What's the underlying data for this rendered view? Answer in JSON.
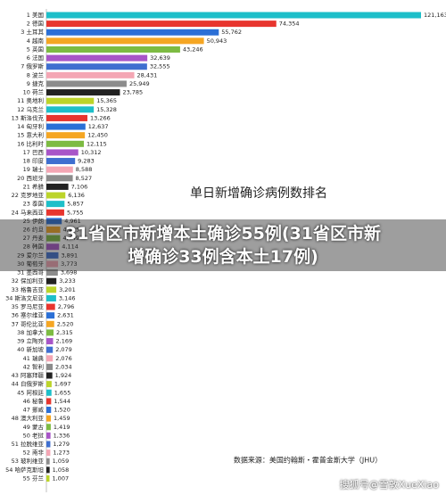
{
  "chart_data": {
    "type": "hbar",
    "title": "单日新增确诊病例数排名",
    "source": "数据来源：美国约翰斯・霍普金斯大学（JHU）",
    "categories": [
      "1 美国",
      "2 德国",
      "3 土耳其",
      "4 越南",
      "5 英国",
      "6 法国",
      "7 俄罗斯",
      "8 波兰",
      "9 捷克",
      "10 荷兰",
      "11 奥地利",
      "12 乌克兰",
      "13 斯洛伐克",
      "14 匈牙利",
      "15 意大利",
      "16 比利时",
      "17 巴西",
      "18 印度",
      "19 瑞士",
      "20 西班牙",
      "21 希腊",
      "22 克罗地亚",
      "23 泰国",
      "24 马来西亚",
      "25 伊朗",
      "26 约旦",
      "27 丹麦",
      "28 韩国",
      "29 爱尔兰",
      "30 葡萄牙",
      "31 墨西哥",
      "32 保加利亚",
      "33 格鲁吉亚",
      "34 斯洛文尼亚",
      "35 罗马尼亚",
      "36 塞尔维亚",
      "37 哥伦比亚",
      "38 加拿大",
      "39 立陶宛",
      "40 新加坡",
      "41 瑞典",
      "42 智利",
      "43 阿塞拜疆",
      "44 白俄罗斯",
      "45 阿根廷",
      "46 秘鲁",
      "47 挪威",
      "48 澳大利亚",
      "49 蒙古",
      "50 老挝",
      "51 拉脱维亚",
      "52 南非",
      "53 玻利维亚",
      "54 哈萨克斯坦",
      "55 芬兰"
    ],
    "values": [
      121163,
      74354,
      55762,
      50943,
      43246,
      32639,
      32555,
      28431,
      25949,
      23785,
      15365,
      15328,
      13266,
      12637,
      12450,
      12115,
      10312,
      9283,
      8588,
      8527,
      7106,
      6136,
      5857,
      5755,
      4961,
      4485,
      4449,
      4114,
      3891,
      3773,
      3698,
      3233,
      3201,
      3146,
      2796,
      2631,
      2520,
      2315,
      2169,
      2079,
      2076,
      2034,
      1924,
      1697,
      1655,
      1544,
      1520,
      1459,
      1419,
      1336,
      1279,
      1273,
      1059,
      1058,
      1007
    ],
    "value_labels": [
      "121,163",
      "74,354",
      "55,762",
      "50,943",
      "43,246",
      "32,639",
      "32,555",
      "28,431",
      "25,949",
      "23,785",
      "15,365",
      "15,328",
      "13,266",
      "12,637",
      "12,450",
      "12,115",
      "10,312",
      "9,283",
      "8,588",
      "8,527",
      "7,106",
      "6,136",
      "5,857",
      "5,755",
      "4,961",
      "4,485",
      "4,449",
      "4,114",
      "3,891",
      "3,773",
      "3,698",
      "3,233",
      "3,201",
      "3,146",
      "2,796",
      "2,631",
      "2,520",
      "2,315",
      "2,169",
      "2,079",
      "2,076",
      "2,034",
      "1,924",
      "1,697",
      "1,655",
      "1,544",
      "1,520",
      "1,459",
      "1,419",
      "1,336",
      "1,279",
      "1,273",
      "1,059",
      "1,058",
      "1,007"
    ],
    "palette": [
      "#1dbfc9",
      "#e8352e",
      "#2b6fd6",
      "#f5a623",
      "#7dbb42",
      "#a855c8",
      "#3f6fd0",
      "#f4a6b4",
      "#8c8c8c",
      "#222222",
      "#bcd42a"
    ]
  },
  "overlay_title": "31省区市新增本土确诊55例(31省区市新增确诊33例含本土17例)",
  "watermark": "搜狐号@雪敦XueXiao"
}
